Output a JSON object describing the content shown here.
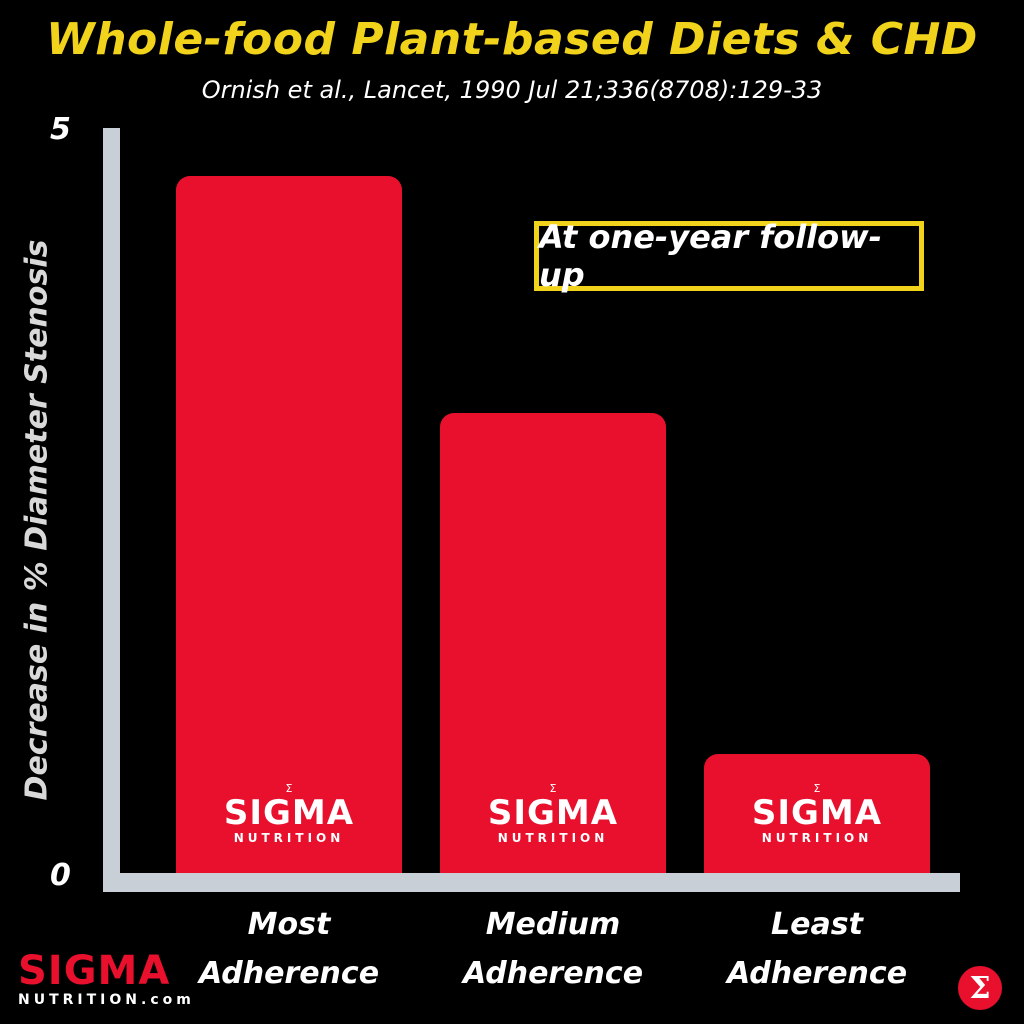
{
  "chart_data": {
    "type": "bar",
    "title": "Whole-food Plant-based Diets & CHD",
    "subtitle": "Ornish et al., Lancet, 1990 Jul 21;336(8708):129-33",
    "ylabel": "Decrease in % Diameter Stenosis",
    "xlabel": "",
    "ylim": [
      0,
      5
    ],
    "yticks": [
      "5",
      "0"
    ],
    "categories": [
      "Most\nAdherence",
      "Medium\nAdherence",
      "Least\nAdherence"
    ],
    "values": [
      4.7,
      3.1,
      0.8
    ],
    "annotation": "At one-year follow-up",
    "grid": false,
    "bar_color": "#e8102c",
    "bar_watermark": {
      "name": "SIGMA",
      "sub": "NUTRITION"
    }
  },
  "brand": {
    "name": "SIGMA",
    "sub": "NUTRITION.com",
    "badge_icon": "sigma-icon",
    "accent_color": "#e8102c"
  }
}
